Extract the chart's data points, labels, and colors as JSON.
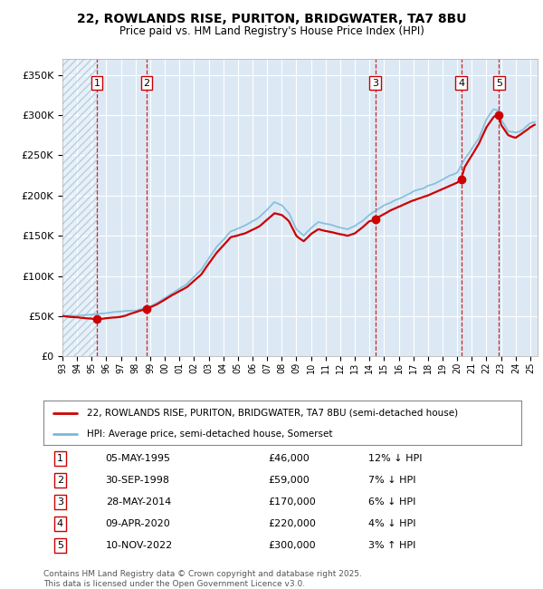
{
  "title1": "22, ROWLANDS RISE, PURITON, BRIDGWATER, TA7 8BU",
  "title2": "Price paid vs. HM Land Registry's House Price Index (HPI)",
  "ylabel_ticks": [
    "£0",
    "£50K",
    "£100K",
    "£150K",
    "£200K",
    "£250K",
    "£300K",
    "£350K"
  ],
  "ytick_vals": [
    0,
    50000,
    100000,
    150000,
    200000,
    250000,
    300000,
    350000
  ],
  "ylim": [
    0,
    370000
  ],
  "xlim_start": 1993.0,
  "xlim_end": 2025.5,
  "sales": [
    {
      "num": 1,
      "date_num": 1995.35,
      "price": 46000,
      "label": "05-MAY-1995",
      "amount": "£46,000",
      "hpi": "12% ↓ HPI"
    },
    {
      "num": 2,
      "date_num": 1998.75,
      "price": 59000,
      "label": "30-SEP-1998",
      "amount": "£59,000",
      "hpi": "7% ↓ HPI"
    },
    {
      "num": 3,
      "date_num": 2014.4,
      "price": 170000,
      "label": "28-MAY-2014",
      "amount": "£170,000",
      "hpi": "6% ↓ HPI"
    },
    {
      "num": 4,
      "date_num": 2020.27,
      "price": 220000,
      "label": "09-APR-2020",
      "amount": "£220,000",
      "hpi": "4% ↓ HPI"
    },
    {
      "num": 5,
      "date_num": 2022.86,
      "price": 300000,
      "label": "10-NOV-2022",
      "amount": "£300,000",
      "hpi": "3% ↑ HPI"
    }
  ],
  "legend_line1": "22, ROWLANDS RISE, PURITON, BRIDGWATER, TA7 8BU (semi-detached house)",
  "legend_line2": "HPI: Average price, semi-detached house, Somerset",
  "footer": "Contains HM Land Registry data © Crown copyright and database right 2025.\nThis data is licensed under the Open Government Licence v3.0.",
  "sale_color": "#cc0000",
  "hpi_color": "#7ab8d9",
  "bg_color": "#dce9f5",
  "hatch_color": "#b8cfe0",
  "grid_color": "#ffffff"
}
